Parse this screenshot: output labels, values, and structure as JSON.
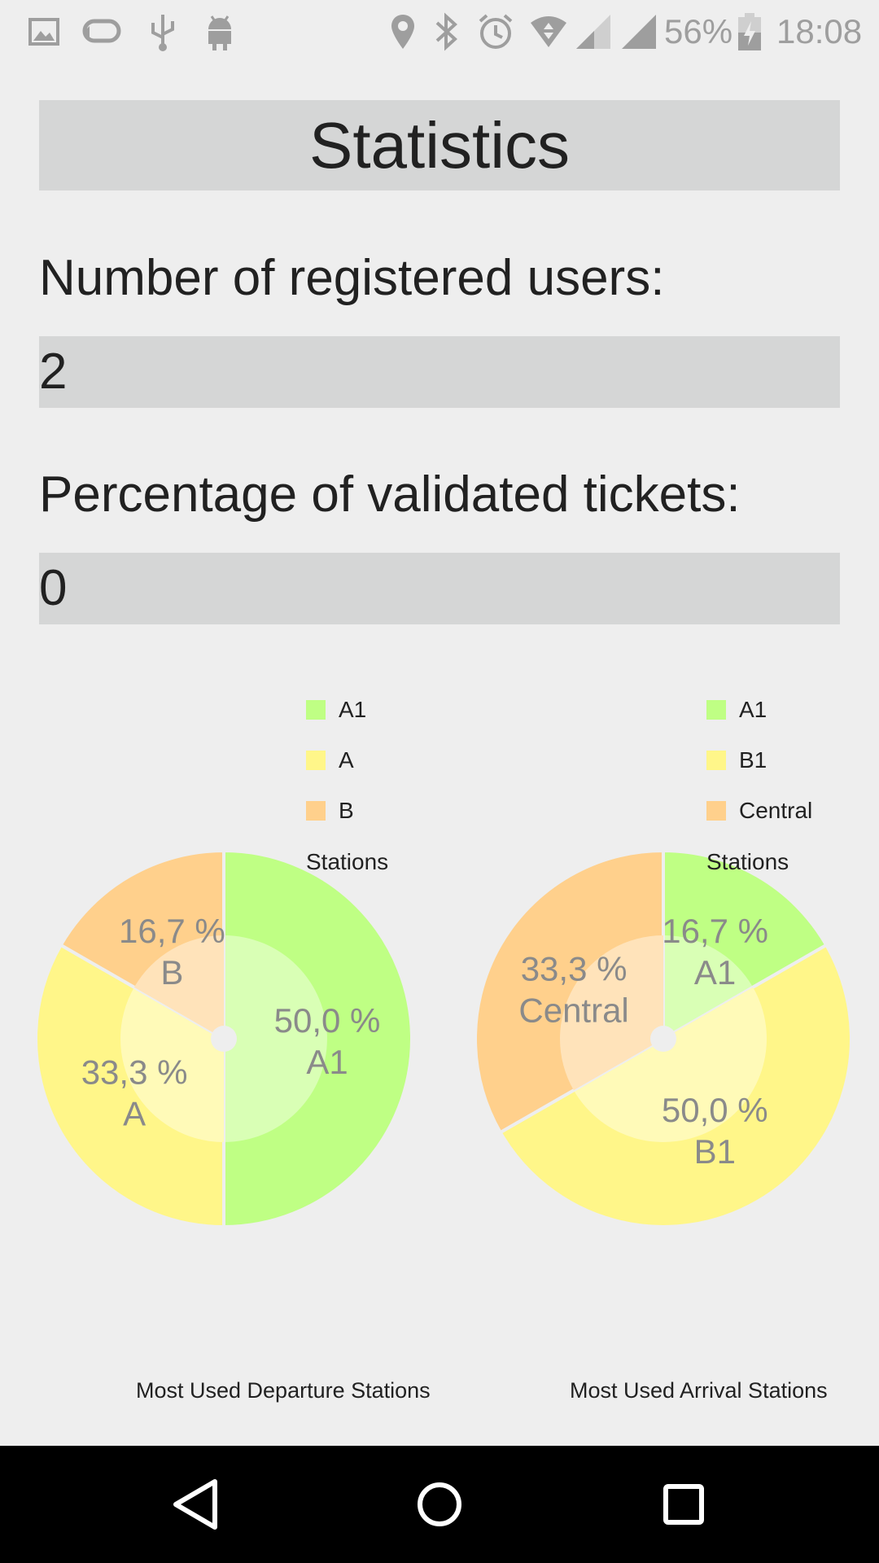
{
  "status_bar": {
    "battery_percent": "56%",
    "time": "18:08",
    "left_icons": [
      "image-icon",
      "sync-icon",
      "usb-icon",
      "android-icon"
    ],
    "right_icons": [
      "location-icon",
      "bluetooth-icon",
      "alarm-icon",
      "wifi-icon",
      "cell-signal-icon",
      "cell-signal-icon",
      "battery-icon"
    ]
  },
  "page": {
    "title": "Statistics",
    "users_label": "Number of registered users:",
    "users_value": "2",
    "tickets_label": "Percentage of validated tickets:",
    "tickets_value": "0"
  },
  "colors": {
    "green": "#bfff84",
    "yellow": "#fff689",
    "orange": "#ffd08c",
    "slice_text": "#8a8a8a",
    "background": "#eeeeee",
    "box": "#d5d6d6"
  },
  "chart_data": [
    {
      "type": "pie",
      "description": "Most Used Departure Stations",
      "legend_title": "Stations",
      "legend_placement": "top-right",
      "slices": [
        {
          "label": "A1",
          "value": 50.0,
          "value_text": "50,0 %",
          "color": "#bfff84"
        },
        {
          "label": "A",
          "value": 33.3,
          "value_text": "33,3 %",
          "color": "#fff689"
        },
        {
          "label": "B",
          "value": 16.7,
          "value_text": "16,7 %",
          "color": "#ffd08c"
        }
      ]
    },
    {
      "type": "pie",
      "description": "Most Used Arrival Stations",
      "legend_title": "Stations",
      "legend_placement": "top-right",
      "slices": [
        {
          "label": "A1",
          "value": 16.7,
          "value_text": "16,7 %",
          "color": "#bfff84"
        },
        {
          "label": "B1",
          "value": 50.0,
          "value_text": "50,0 %",
          "color": "#fff689"
        },
        {
          "label": "Central",
          "value": 33.3,
          "value_text": "33,3 %",
          "color": "#ffd08c"
        }
      ]
    }
  ],
  "nav_bar": {
    "buttons": [
      "back-icon",
      "home-icon",
      "recents-icon"
    ]
  }
}
